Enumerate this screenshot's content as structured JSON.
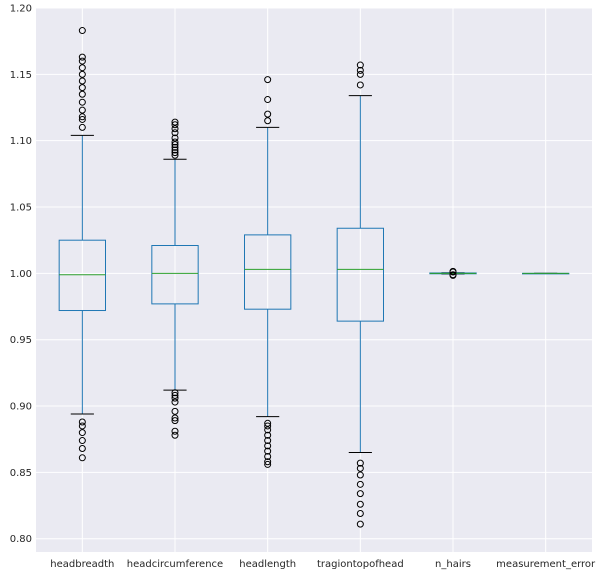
{
  "chart_data": {
    "type": "box",
    "title": "",
    "xlabel": "",
    "ylabel": "",
    "ylim": [
      0.79,
      1.2
    ],
    "yticks": [
      0.8,
      0.85,
      0.9,
      0.95,
      1.0,
      1.05,
      1.1,
      1.15,
      1.2
    ],
    "ytick_labels": [
      "0.80",
      "0.85",
      "0.90",
      "0.95",
      "1.00",
      "1.05",
      "1.10",
      "1.15",
      "1.20"
    ],
    "grid": true,
    "colors": {
      "background": "#eaeaf2",
      "grid": "#ffffff",
      "box": "#1f77b4",
      "median": "#2ca02c",
      "flier": "#000000",
      "text": "#262626"
    },
    "categories": [
      "headbreadth",
      "headcircumference",
      "headlength",
      "tragiontopofhead",
      "n_hairs",
      "measurement_error"
    ],
    "boxes": [
      {
        "label": "headbreadth",
        "whisker_low": 0.894,
        "q1": 0.972,
        "median": 0.999,
        "q3": 1.025,
        "whisker_high": 1.104,
        "fliers": [
          0.861,
          0.868,
          0.874,
          0.88,
          0.885,
          0.888,
          1.11,
          1.116,
          1.118,
          1.123,
          1.129,
          1.135,
          1.14,
          1.145,
          1.15,
          1.155,
          1.16,
          1.163,
          1.183
        ]
      },
      {
        "label": "headcircumference",
        "whisker_low": 0.912,
        "q1": 0.977,
        "median": 1.0,
        "q3": 1.021,
        "whisker_high": 1.086,
        "fliers": [
          0.878,
          0.881,
          0.889,
          0.891,
          0.896,
          0.903,
          0.906,
          0.908,
          0.91,
          1.089,
          1.091,
          1.093,
          1.095,
          1.097,
          1.099,
          1.102,
          1.106,
          1.109,
          1.112,
          1.114
        ]
      },
      {
        "label": "headlength",
        "whisker_low": 0.892,
        "q1": 0.973,
        "median": 1.003,
        "q3": 1.029,
        "whisker_high": 1.11,
        "fliers": [
          0.856,
          0.858,
          0.862,
          0.866,
          0.87,
          0.874,
          0.878,
          0.882,
          0.885,
          0.887,
          1.115,
          1.12,
          1.131,
          1.146
        ]
      },
      {
        "label": "tragiontopofhead",
        "whisker_low": 0.865,
        "q1": 0.964,
        "median": 1.003,
        "q3": 1.034,
        "whisker_high": 1.134,
        "fliers": [
          0.811,
          0.819,
          0.826,
          0.834,
          0.841,
          0.848,
          0.853,
          0.857,
          1.142,
          1.15,
          1.153,
          1.157
        ]
      },
      {
        "label": "n_hairs",
        "whisker_low": 0.9995,
        "q1": 0.9997,
        "median": 1.0,
        "q3": 1.0003,
        "whisker_high": 1.0005,
        "fliers": [
          0.9985,
          0.999,
          1.001,
          1.0015
        ]
      },
      {
        "label": "measurement_error",
        "whisker_low": 1.0,
        "q1": 1.0,
        "median": 1.0,
        "q3": 1.0,
        "whisker_high": 1.0,
        "fliers": []
      }
    ]
  }
}
